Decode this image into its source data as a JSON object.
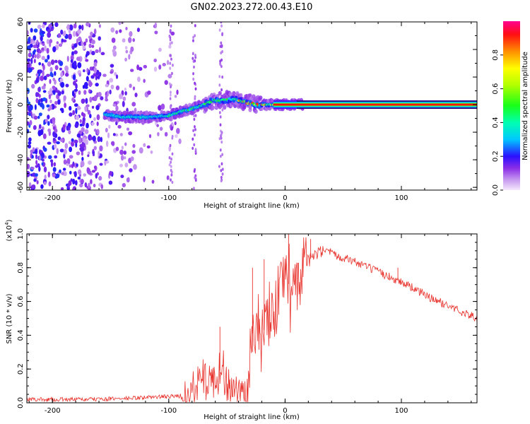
{
  "title": "GN02.2023.272.00.43.E10",
  "chart_data": [
    {
      "type": "heatmap",
      "title": "GN02.2023.272.00.43.E10",
      "xlabel": "Height of straight line (km)",
      "ylabel": "Frequency (Hz)",
      "xlim": [
        -222,
        165
      ],
      "ylim": [
        -62,
        60
      ],
      "xticks": [
        -200,
        -100,
        0,
        100
      ],
      "xtick_labels": [
        "-200",
        "-100",
        "0",
        "100"
      ],
      "yticks": [
        -60,
        -40,
        -20,
        0,
        20,
        40,
        60
      ],
      "ytick_labels": [
        "-60",
        "-40",
        "-20",
        "0",
        "20",
        "40",
        "60"
      ],
      "colorbar": {
        "label": "Normalized spectral amplitude",
        "range": [
          0,
          1
        ],
        "ticks": [
          0,
          0.2,
          0.4,
          0.6,
          0.8
        ],
        "tick_labels": [
          "0.0",
          "0.2",
          "0.4",
          "0.6",
          "0.8"
        ]
      },
      "ridge": [
        {
          "x": -155,
          "y": -7
        },
        {
          "x": -140,
          "y": -9
        },
        {
          "x": -130,
          "y": -9
        },
        {
          "x": -115,
          "y": -9
        },
        {
          "x": -100,
          "y": -8
        },
        {
          "x": -90,
          "y": -5
        },
        {
          "x": -80,
          "y": -3
        },
        {
          "x": -70,
          "y": 0
        },
        {
          "x": -62,
          "y": 3
        },
        {
          "x": -55,
          "y": 3
        },
        {
          "x": -45,
          "y": 4
        },
        {
          "x": -35,
          "y": 2
        },
        {
          "x": -25,
          "y": 0
        },
        {
          "x": -15,
          "y": 0
        },
        {
          "x": -5,
          "y": 0
        },
        {
          "x": 10,
          "y": 0
        },
        {
          "x": 165,
          "y": 0
        }
      ],
      "noise_region": {
        "x_from": -222,
        "x_to": -90,
        "amplitude": 0.25
      }
    },
    {
      "type": "line",
      "xlabel": "Height of straight line (km)",
      "ylabel": "SNR (10 * v/v)",
      "yscale_label": "(x10",
      "yscale_exponent": "4",
      "xlim": [
        -222,
        165
      ],
      "ylim": [
        0,
        1.0
      ],
      "xticks": [
        -200,
        -100,
        0,
        100
      ],
      "xtick_labels": [
        "-200",
        "-100",
        "0",
        "100"
      ],
      "yticks": [
        0,
        0.2,
        0.4,
        0.6,
        0.8,
        1.0
      ],
      "ytick_labels": [
        "0.0",
        "0.2",
        "0.4",
        "0.6",
        "0.8",
        "1.0"
      ],
      "series": [
        {
          "color": "#e8312b",
          "points": [
            {
              "x": -222,
              "y": 0.02
            },
            {
              "x": -200,
              "y": 0.02
            },
            {
              "x": -170,
              "y": 0.02
            },
            {
              "x": -140,
              "y": 0.025
            },
            {
              "x": -110,
              "y": 0.035
            },
            {
              "x": -90,
              "y": 0.04
            },
            {
              "x": -80,
              "y": 0.07
            },
            {
              "x": -70,
              "y": 0.12
            },
            {
              "x": -60,
              "y": 0.15
            },
            {
              "x": -55,
              "y": 0.2
            },
            {
              "x": -50,
              "y": 0.12
            },
            {
              "x": -45,
              "y": 0.08
            },
            {
              "x": -38,
              "y": 0.05
            },
            {
              "x": -33,
              "y": 0.05
            },
            {
              "x": -30,
              "y": 0.22
            },
            {
              "x": -25,
              "y": 0.42
            },
            {
              "x": -20,
              "y": 0.4
            },
            {
              "x": -15,
              "y": 0.48
            },
            {
              "x": -10,
              "y": 0.55
            },
            {
              "x": -5,
              "y": 0.62
            },
            {
              "x": 0,
              "y": 0.68
            },
            {
              "x": 5,
              "y": 0.72
            },
            {
              "x": 10,
              "y": 0.77
            },
            {
              "x": 15,
              "y": 0.8
            },
            {
              "x": 20,
              "y": 0.84
            },
            {
              "x": 25,
              "y": 0.87
            },
            {
              "x": 30,
              "y": 0.89
            },
            {
              "x": 35,
              "y": 0.89
            },
            {
              "x": 45,
              "y": 0.87
            },
            {
              "x": 55,
              "y": 0.85
            },
            {
              "x": 65,
              "y": 0.82
            },
            {
              "x": 75,
              "y": 0.79
            },
            {
              "x": 85,
              "y": 0.76
            },
            {
              "x": 95,
              "y": 0.73
            },
            {
              "x": 105,
              "y": 0.7
            },
            {
              "x": 115,
              "y": 0.66
            },
            {
              "x": 125,
              "y": 0.62
            },
            {
              "x": 135,
              "y": 0.59
            },
            {
              "x": 145,
              "y": 0.56
            },
            {
              "x": 155,
              "y": 0.53
            },
            {
              "x": 165,
              "y": 0.5
            }
          ],
          "spikes": [
            {
              "x": -56,
              "y": 0.45
            },
            {
              "x": -28,
              "y": 0.8
            },
            {
              "x": -18,
              "y": 0.85
            },
            {
              "x": 3,
              "y": 1.0
            },
            {
              "x": 22,
              "y": 0.97
            },
            {
              "x": 97,
              "y": 0.8
            }
          ]
        }
      ]
    }
  ]
}
